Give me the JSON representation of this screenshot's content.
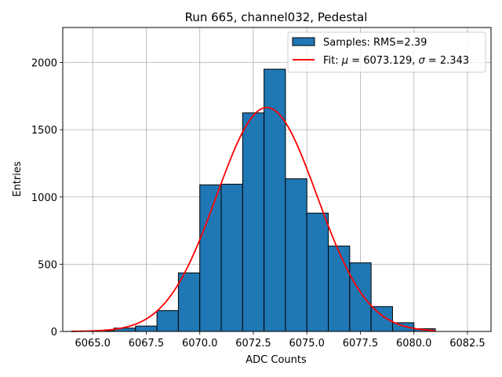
{
  "chart_data": {
    "type": "bar",
    "title": "Run 665, channel032, Pedestal",
    "xlabel": "ADC Counts",
    "ylabel": "Entries",
    "xlim": [
      6063.6,
      6083.6
    ],
    "ylim": [
      0,
      2260
    ],
    "xticks": [
      6065.0,
      6067.5,
      6070.0,
      6072.5,
      6075.0,
      6077.5,
      6080.0,
      6082.5
    ],
    "xtick_labels": [
      "6065.0",
      "6067.5",
      "6070.0",
      "6072.5",
      "6075.0",
      "6077.5",
      "6080.0",
      "6082.5"
    ],
    "yticks": [
      0,
      500,
      1000,
      1500,
      2000
    ],
    "ytick_labels": [
      "0",
      "500",
      "1000",
      "1500",
      "2000"
    ],
    "grid": true,
    "legend_position": "top-right",
    "histogram": {
      "name": "Samples: RMS=2.39",
      "color": "#1f77b4",
      "edge_color": "#000000",
      "bins": [
        {
          "x0": 6065.0,
          "x1": 6066.0,
          "value": 5
        },
        {
          "x0": 6066.0,
          "x1": 6067.0,
          "value": 25
        },
        {
          "x0": 6067.0,
          "x1": 6068.0,
          "value": 40
        },
        {
          "x0": 6068.0,
          "x1": 6069.0,
          "value": 155
        },
        {
          "x0": 6069.0,
          "x1": 6070.0,
          "value": 435
        },
        {
          "x0": 6070.0,
          "x1": 6071.0,
          "value": 1090
        },
        {
          "x0": 6071.0,
          "x1": 6072.0,
          "value": 1095
        },
        {
          "x0": 6072.0,
          "x1": 6073.0,
          "value": 1625
        },
        {
          "x0": 6073.0,
          "x1": 6074.0,
          "value": 1950
        },
        {
          "x0": 6074.0,
          "x1": 6075.0,
          "value": 1135
        },
        {
          "x0": 6075.0,
          "x1": 6076.0,
          "value": 880
        },
        {
          "x0": 6076.0,
          "x1": 6077.0,
          "value": 635
        },
        {
          "x0": 6077.0,
          "x1": 6078.0,
          "value": 510
        },
        {
          "x0": 6078.0,
          "x1": 6079.0,
          "value": 185
        },
        {
          "x0": 6079.0,
          "x1": 6080.0,
          "value": 65
        },
        {
          "x0": 6080.0,
          "x1": 6081.0,
          "value": 20
        }
      ]
    },
    "fit": {
      "name": "Fit: μ = 6073.129, σ = 2.343",
      "label_prefix": "Fit: ",
      "mu_symbol": "μ",
      "mu_text": " = 6073.129, ",
      "sigma_symbol": "σ",
      "sigma_text": " = 2.343",
      "color": "#ff0000",
      "mu": 6073.129,
      "sigma": 2.343,
      "amplitude": 1665,
      "x_range": [
        6064.0,
        6081.0
      ]
    }
  }
}
